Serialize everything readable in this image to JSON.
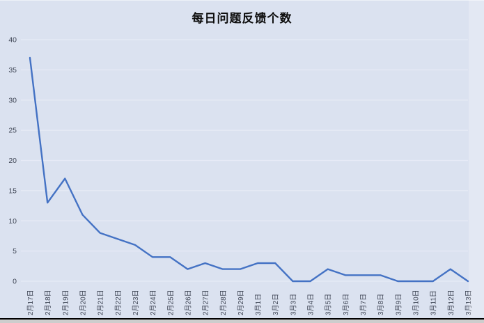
{
  "chart_data": {
    "type": "line",
    "title": "每日问题反馈个数",
    "categories": [
      "2月17日",
      "2月18日",
      "2月19日",
      "2月20日",
      "2月21日",
      "2月22日",
      "2月23日",
      "2月24日",
      "2月25日",
      "2月26日",
      "2月27日",
      "2月28日",
      "2月29日",
      "3月1日",
      "3月2日",
      "3月3日",
      "3月4日",
      "3月5日",
      "3月6日",
      "3月7日",
      "3月8日",
      "3月9日",
      "3月10日",
      "3月11日",
      "3月12日",
      "3月13日"
    ],
    "values": [
      37,
      13,
      17,
      11,
      8,
      7,
      6,
      4,
      4,
      2,
      3,
      2,
      2,
      3,
      3,
      0,
      0,
      2,
      1,
      1,
      1,
      0,
      0,
      0,
      2,
      0
    ],
    "xlabel": "",
    "ylabel": "",
    "ylim": [
      0,
      40
    ],
    "yticks": [
      0,
      5,
      10,
      15,
      20,
      25,
      30,
      35,
      40
    ],
    "grid": true,
    "legend": false,
    "markers": false,
    "colors": {
      "line": "#4472c4",
      "background": "#dbe2f0",
      "gridline": "#e7ebf6",
      "tick_label": "#404756",
      "title": "#0d0d0d",
      "window_edge": "#000000"
    }
  }
}
